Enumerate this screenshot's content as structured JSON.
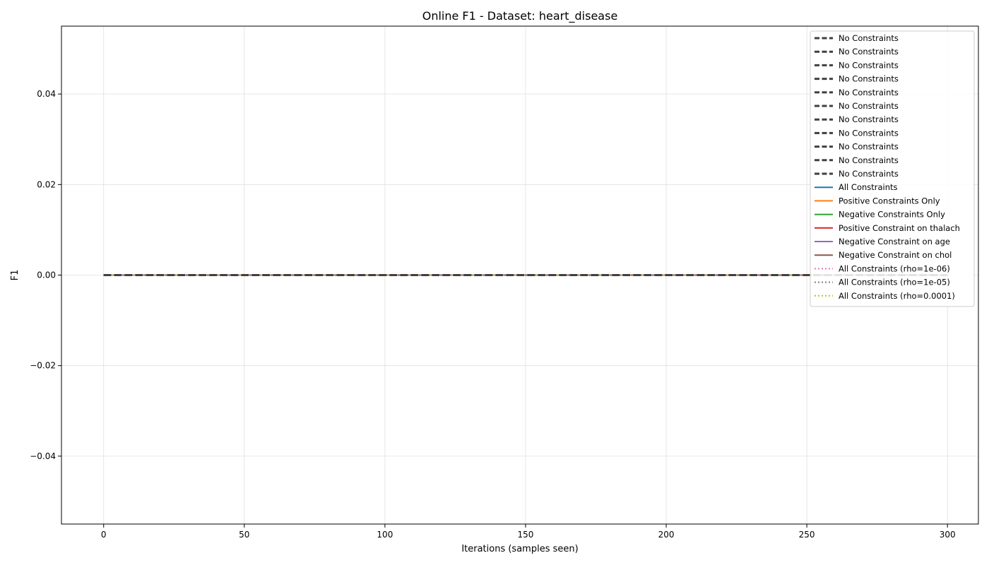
{
  "chart_data": {
    "type": "line",
    "title": "Online F1 - Dataset: heart_disease",
    "xlabel": "Iterations (samples seen)",
    "ylabel": "F1",
    "xlim": [
      -15,
      311
    ],
    "ylim": [
      -0.055,
      0.055
    ],
    "xticks": [
      0,
      50,
      100,
      150,
      200,
      250,
      300
    ],
    "xtick_labels": [
      "0",
      "50",
      "100",
      "150",
      "200",
      "250",
      "300"
    ],
    "yticks": [
      -0.04,
      -0.02,
      0.0,
      0.02,
      0.04
    ],
    "ytick_labels": [
      "−0.04",
      "−0.02",
      "0.00",
      "0.02",
      "0.04"
    ],
    "grid": true,
    "legend_position": "top-right",
    "x_range": [
      0,
      300
    ],
    "series": [
      {
        "name": "No Constraints",
        "color": "#404040",
        "style": "dashed",
        "values": [
          0,
          0
        ]
      },
      {
        "name": "No Constraints",
        "color": "#404040",
        "style": "dashed",
        "values": [
          0,
          0
        ]
      },
      {
        "name": "No Constraints",
        "color": "#404040",
        "style": "dashed",
        "values": [
          0,
          0
        ]
      },
      {
        "name": "No Constraints",
        "color": "#404040",
        "style": "dashed",
        "values": [
          0,
          0
        ]
      },
      {
        "name": "No Constraints",
        "color": "#404040",
        "style": "dashed",
        "values": [
          0,
          0
        ]
      },
      {
        "name": "No Constraints",
        "color": "#404040",
        "style": "dashed",
        "values": [
          0,
          0
        ]
      },
      {
        "name": "No Constraints",
        "color": "#404040",
        "style": "dashed",
        "values": [
          0,
          0
        ]
      },
      {
        "name": "No Constraints",
        "color": "#404040",
        "style": "dashed",
        "values": [
          0,
          0
        ]
      },
      {
        "name": "No Constraints",
        "color": "#404040",
        "style": "dashed",
        "values": [
          0,
          0
        ]
      },
      {
        "name": "No Constraints",
        "color": "#404040",
        "style": "dashed",
        "values": [
          0,
          0
        ]
      },
      {
        "name": "No Constraints",
        "color": "#404040",
        "style": "dashed",
        "values": [
          0,
          0
        ]
      },
      {
        "name": "All Constraints",
        "color": "#1f77b4",
        "style": "solid",
        "values": [
          0,
          0
        ]
      },
      {
        "name": "Positive Constraints Only",
        "color": "#ff7f0e",
        "style": "solid",
        "values": [
          0,
          0
        ]
      },
      {
        "name": "Negative Constraints Only",
        "color": "#2ca02c",
        "style": "solid",
        "values": [
          0,
          0
        ]
      },
      {
        "name": "Positive Constraint on thalach",
        "color": "#d62728",
        "style": "solid",
        "values": [
          0,
          0
        ]
      },
      {
        "name": "Negative Constraint on age",
        "color": "#9467bd",
        "style": "solid",
        "values": [
          0,
          0
        ]
      },
      {
        "name": "Negative Constraint on chol",
        "color": "#8c564b",
        "style": "solid",
        "values": [
          0,
          0
        ]
      },
      {
        "name": "All Constraints (rho=1e-06)",
        "color": "#e377c2",
        "style": "dotted",
        "values": [
          0,
          0
        ]
      },
      {
        "name": "All Constraints (rho=1e-05)",
        "color": "#7f7f7f",
        "style": "dotted",
        "values": [
          0,
          0
        ]
      },
      {
        "name": "All Constraints (rho=0.0001)",
        "color": "#bcbd22",
        "style": "dotted",
        "values": [
          0,
          0
        ]
      }
    ]
  }
}
